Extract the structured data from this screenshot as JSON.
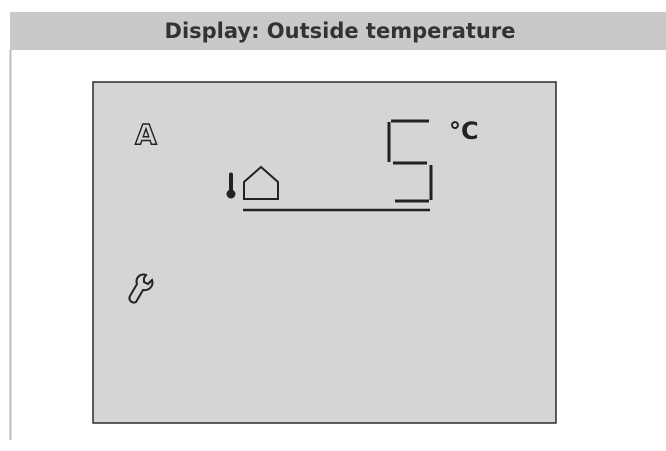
{
  "header": {
    "title": "Display: Outside temperature"
  },
  "display": {
    "mode_symbol": "A",
    "value": "5",
    "unit": "°C"
  }
}
